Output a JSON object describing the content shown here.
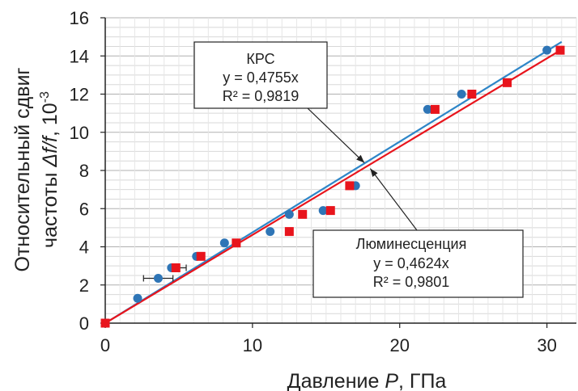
{
  "chart_data": {
    "type": "scatter",
    "xlabel": {
      "prefix": "Давление ",
      "var": "P",
      "suffix": ", ГПа"
    },
    "ylabel": {
      "line1": "Относительный сдвиг",
      "line2_prefix": "частоты ",
      "line2_var": "Δf/f",
      "line2_suffix": ", 10",
      "line2_exp": "-3"
    },
    "xlim": [
      0,
      32
    ],
    "ylim": [
      0,
      16
    ],
    "x_ticks": [
      "0",
      "10",
      "20",
      "30"
    ],
    "y_ticks": [
      "0",
      "2",
      "4",
      "6",
      "8",
      "10",
      "12",
      "14",
      "16"
    ],
    "grid": "horizontal",
    "series": [
      {
        "marker": "circle",
        "color": "#2e75b6",
        "points": [
          {
            "x": 0,
            "y": 0
          },
          {
            "x": 2.2,
            "y": 1.3
          },
          {
            "x": 3.6,
            "y": 2.35
          },
          {
            "x": 4.5,
            "y": 2.9
          },
          {
            "x": 6.2,
            "y": 3.5
          },
          {
            "x": 8.1,
            "y": 4.2
          },
          {
            "x": 11.2,
            "y": 4.8
          },
          {
            "x": 12.5,
            "y": 5.7
          },
          {
            "x": 14.8,
            "y": 5.9
          },
          {
            "x": 17.0,
            "y": 7.2
          },
          {
            "x": 21.9,
            "y": 11.2
          },
          {
            "x": 24.2,
            "y": 12.0
          },
          {
            "x": 30.0,
            "y": 14.3
          }
        ],
        "error_x": [
          {
            "x": 3.6,
            "y": 2.35,
            "minus": 1.0,
            "plus": 1.0
          },
          {
            "x": 4.5,
            "y": 2.9,
            "minus": 0.0,
            "plus": 1.0
          }
        ],
        "fit": {
          "slope": 0.4755,
          "line_color": "#2e86c8"
        }
      },
      {
        "marker": "square",
        "color": "#e8141c",
        "points": [
          {
            "x": 0,
            "y": 0
          },
          {
            "x": 4.8,
            "y": 2.9
          },
          {
            "x": 6.5,
            "y": 3.5
          },
          {
            "x": 8.9,
            "y": 4.2
          },
          {
            "x": 12.5,
            "y": 4.8
          },
          {
            "x": 13.4,
            "y": 5.7
          },
          {
            "x": 15.3,
            "y": 5.9
          },
          {
            "x": 16.6,
            "y": 7.2
          },
          {
            "x": 22.4,
            "y": 11.2
          },
          {
            "x": 24.9,
            "y": 12.0
          },
          {
            "x": 27.3,
            "y": 12.6
          },
          {
            "x": 30.9,
            "y": 14.3
          }
        ],
        "fit": {
          "slope": 0.4624,
          "line_color": "#e8141c"
        }
      }
    ],
    "annotations": [
      {
        "lines": [
          "КРС",
          "y = 0,4755x",
          "R² = 0,9819"
        ],
        "arrow_to": {
          "x": 17.6,
          "y": 8.4
        }
      },
      {
        "lines": [
          "Люминесценция",
          "y = 0,4624x",
          "R² = 0,9801"
        ],
        "arrow_to": {
          "x": 18.0,
          "y": 8.1
        }
      }
    ]
  }
}
